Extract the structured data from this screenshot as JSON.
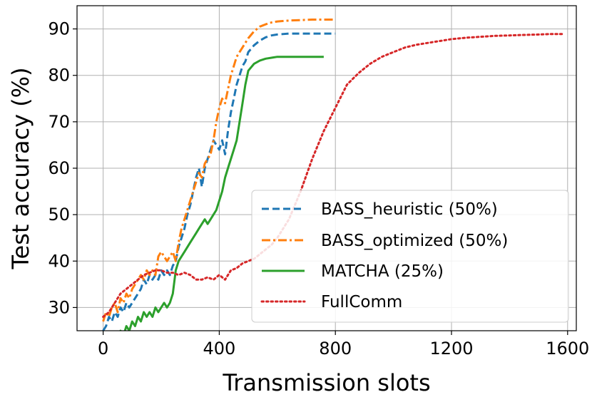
{
  "chart_data": {
    "type": "line",
    "title": "",
    "xlabel": "Transmission slots",
    "ylabel": "Test accuracy (%)",
    "xlim": [
      -90,
      1630
    ],
    "ylim": [
      25,
      95
    ],
    "xticks": [
      0,
      400,
      800,
      1200,
      1600
    ],
    "yticks": [
      30,
      40,
      50,
      60,
      70,
      80,
      90
    ],
    "grid": true,
    "legend_position": "lower-right",
    "series": [
      {
        "name": "BASS_heuristic (50%)",
        "color": "#1f77b4",
        "dash": "dashed",
        "x": [
          0,
          10,
          20,
          30,
          40,
          50,
          60,
          70,
          80,
          90,
          100,
          110,
          120,
          130,
          140,
          150,
          160,
          170,
          180,
          190,
          200,
          210,
          220,
          230,
          240,
          250,
          260,
          270,
          280,
          290,
          300,
          310,
          320,
          330,
          340,
          350,
          360,
          370,
          380,
          390,
          400,
          410,
          420,
          430,
          440,
          450,
          460,
          470,
          480,
          490,
          500,
          520,
          540,
          560,
          580,
          600,
          640,
          680,
          720,
          760,
          800
        ],
        "y": [
          25,
          26,
          28,
          27,
          29,
          28,
          30,
          29,
          31,
          30,
          31,
          32,
          33,
          34,
          36,
          35,
          37,
          36,
          37,
          36,
          38,
          37,
          38,
          37,
          39,
          40,
          43,
          45,
          47,
          50,
          52,
          55,
          58,
          60,
          56,
          60,
          62,
          64,
          66,
          65,
          64,
          66,
          63,
          68,
          72,
          75,
          78,
          80,
          82,
          83,
          85,
          86.5,
          87.5,
          88.2,
          88.6,
          88.8,
          89,
          89,
          89,
          89,
          89
        ]
      },
      {
        "name": "BASS_optimized (50%)",
        "color": "#ff7f0e",
        "dash": "dashdot",
        "x": [
          0,
          10,
          20,
          30,
          40,
          50,
          60,
          70,
          80,
          90,
          100,
          110,
          120,
          130,
          140,
          150,
          160,
          170,
          180,
          190,
          200,
          210,
          220,
          230,
          240,
          250,
          260,
          270,
          280,
          290,
          300,
          310,
          320,
          330,
          340,
          350,
          360,
          370,
          380,
          390,
          400,
          410,
          420,
          430,
          440,
          450,
          460,
          470,
          480,
          490,
          500,
          520,
          540,
          560,
          580,
          600,
          640,
          680,
          720,
          760,
          800
        ],
        "y": [
          27,
          29,
          28,
          30,
          31,
          29,
          32,
          31,
          33,
          32,
          34,
          35,
          36,
          37,
          36,
          38,
          37,
          38,
          37,
          41,
          42,
          41,
          40,
          41,
          42,
          40,
          44,
          47,
          49,
          51,
          53,
          55,
          57,
          59,
          58,
          61,
          62,
          63,
          66,
          70,
          73,
          75,
          74,
          77,
          80,
          82,
          84,
          85,
          86,
          87,
          88,
          89.5,
          90.5,
          91,
          91.4,
          91.6,
          91.8,
          91.9,
          92,
          92,
          92
        ]
      },
      {
        "name": "MATCHA (25%)",
        "color": "#2ca02c",
        "dash": "solid",
        "x": [
          0,
          10,
          20,
          30,
          40,
          50,
          60,
          70,
          80,
          90,
          100,
          110,
          120,
          130,
          140,
          150,
          160,
          170,
          180,
          190,
          200,
          210,
          220,
          230,
          240,
          250,
          260,
          270,
          280,
          290,
          300,
          310,
          320,
          330,
          340,
          350,
          360,
          370,
          380,
          390,
          400,
          410,
          420,
          430,
          440,
          450,
          460,
          470,
          480,
          490,
          500,
          520,
          540,
          560,
          580,
          600,
          640,
          680,
          720,
          760
        ],
        "y": [
          22,
          22,
          23,
          22,
          24,
          23,
          25,
          24,
          26,
          25,
          27,
          26,
          28,
          27,
          29,
          28,
          29,
          28,
          30,
          29,
          30,
          31,
          30,
          31,
          33,
          38,
          40,
          41,
          42,
          43,
          44,
          45,
          46,
          47,
          48,
          49,
          48,
          49,
          50,
          51,
          53,
          55,
          58,
          60,
          62,
          64,
          66,
          70,
          74,
          78,
          81,
          82.5,
          83.2,
          83.6,
          83.8,
          84,
          84,
          84,
          84,
          84
        ]
      },
      {
        "name": "FullComm",
        "color": "#d62728",
        "dash": "dotted",
        "x": [
          0,
          20,
          40,
          60,
          80,
          100,
          120,
          140,
          160,
          180,
          200,
          220,
          240,
          260,
          280,
          300,
          320,
          340,
          360,
          380,
          400,
          420,
          440,
          460,
          480,
          500,
          520,
          540,
          560,
          580,
          600,
          640,
          680,
          720,
          760,
          800,
          840,
          880,
          920,
          960,
          1000,
          1040,
          1080,
          1120,
          1160,
          1200,
          1250,
          1300,
          1350,
          1400,
          1450,
          1500,
          1540,
          1580
        ],
        "y": [
          28,
          29,
          31,
          33,
          34,
          35,
          36,
          37,
          37.5,
          38,
          38,
          37.5,
          37.5,
          37,
          37.5,
          37,
          36,
          36,
          36.5,
          36,
          37,
          36,
          38,
          38.5,
          39.5,
          40,
          40.5,
          41.5,
          42.5,
          43.5,
          45,
          49,
          55,
          62,
          68,
          73,
          78,
          80.5,
          82.5,
          84,
          85,
          86,
          86.6,
          87,
          87.4,
          87.8,
          88.1,
          88.3,
          88.5,
          88.6,
          88.7,
          88.8,
          88.9,
          88.9
        ]
      }
    ]
  }
}
